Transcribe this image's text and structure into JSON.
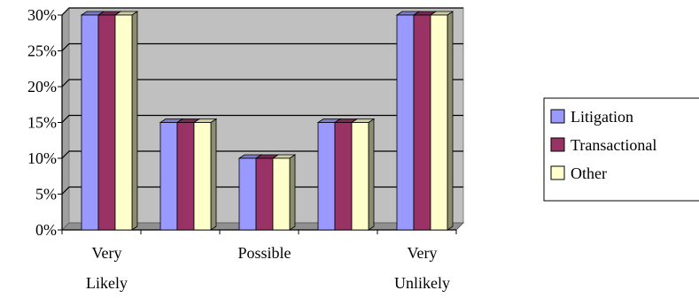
{
  "chart_data": {
    "type": "bar",
    "style": "3d-clustered-column",
    "categories": [
      [
        "Very",
        "Likely"
      ],
      [],
      [
        "Possible"
      ],
      [],
      [
        "Very",
        "Unlikely"
      ]
    ],
    "series": [
      {
        "name": "Litigation",
        "color": "#9999ff",
        "values": [
          30,
          15,
          10,
          15,
          30
        ]
      },
      {
        "name": "Transactional",
        "color": "#993366",
        "values": [
          30,
          15,
          10,
          15,
          30
        ]
      },
      {
        "name": "Other",
        "color": "#ffffcc",
        "values": [
          30,
          15,
          10,
          15,
          30
        ]
      }
    ],
    "yticks": [
      "0%",
      "5%",
      "10%",
      "15%",
      "20%",
      "25%",
      "30%"
    ],
    "ylim": [
      0,
      30
    ],
    "ystep": 5,
    "grid": true,
    "wall_color": "#c0c0c0",
    "legend_position": "right",
    "title": "",
    "xlabel": "",
    "ylabel": ""
  }
}
